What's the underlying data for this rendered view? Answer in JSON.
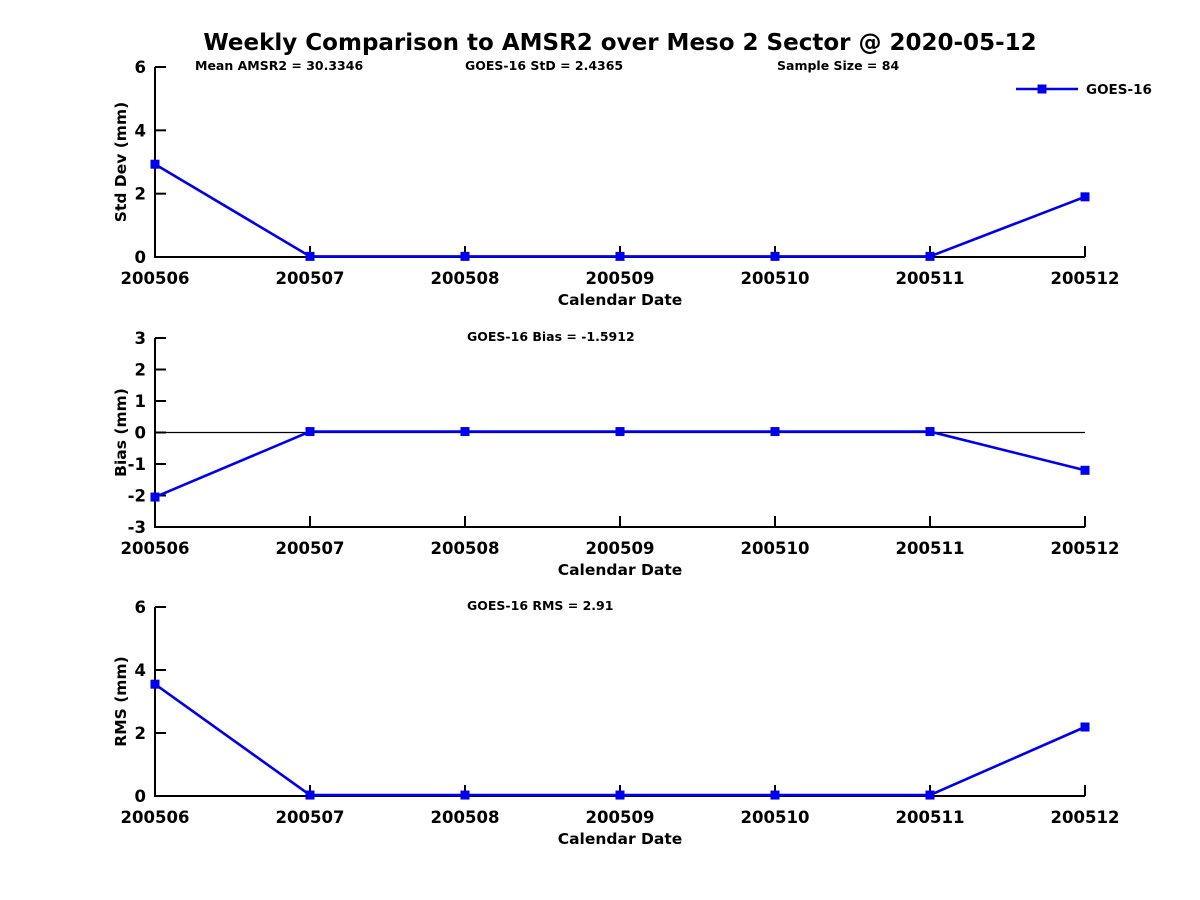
{
  "colors": {
    "series": "#0000EE",
    "axis": "#000000",
    "background": "#ffffff",
    "text": "#000000"
  },
  "legend": {
    "label": "GOES-16",
    "position": "top-right",
    "marker": "filled-square-on-line"
  },
  "chart_data": {
    "type": "line",
    "title": "Weekly Comparison to AMSR2 over Meso 2 Sector @ 2020-05-12",
    "categories": [
      "200506",
      "200507",
      "200508",
      "200509",
      "200510",
      "200511",
      "200512"
    ],
    "xlabel": "Calendar Date",
    "series_name": "GOES-16",
    "grid": false,
    "subplots": [
      {
        "name": "std-dev",
        "ylabel": "Std Dev (mm)",
        "ylim": [
          0,
          6
        ],
        "yticks": [
          0,
          2,
          4,
          6
        ],
        "zero_line": false,
        "values": [
          2.93,
          0.02,
          0.02,
          0.02,
          0.02,
          0.02,
          1.9
        ],
        "annotations": [
          "Mean AMSR2 = 30.3346",
          "GOES-16 StD = 2.4365",
          "Sample Size = 84"
        ]
      },
      {
        "name": "bias",
        "ylabel": "Bias (mm)",
        "ylim": [
          -3,
          3
        ],
        "yticks": [
          -3,
          -2,
          -1,
          0,
          1,
          2,
          3
        ],
        "zero_line": true,
        "values": [
          -2.05,
          0.03,
          0.03,
          0.03,
          0.03,
          0.03,
          -1.2
        ],
        "annotations": [
          "GOES-16 Bias  = -1.5912"
        ]
      },
      {
        "name": "rms",
        "ylabel": "RMS (mm)",
        "ylim": [
          0,
          6
        ],
        "yticks": [
          0,
          2,
          4,
          6
        ],
        "zero_line": false,
        "values": [
          3.55,
          0.03,
          0.03,
          0.03,
          0.03,
          0.03,
          2.19
        ],
        "annotations": [
          "GOES-16 RMS = 2.91"
        ]
      }
    ]
  }
}
